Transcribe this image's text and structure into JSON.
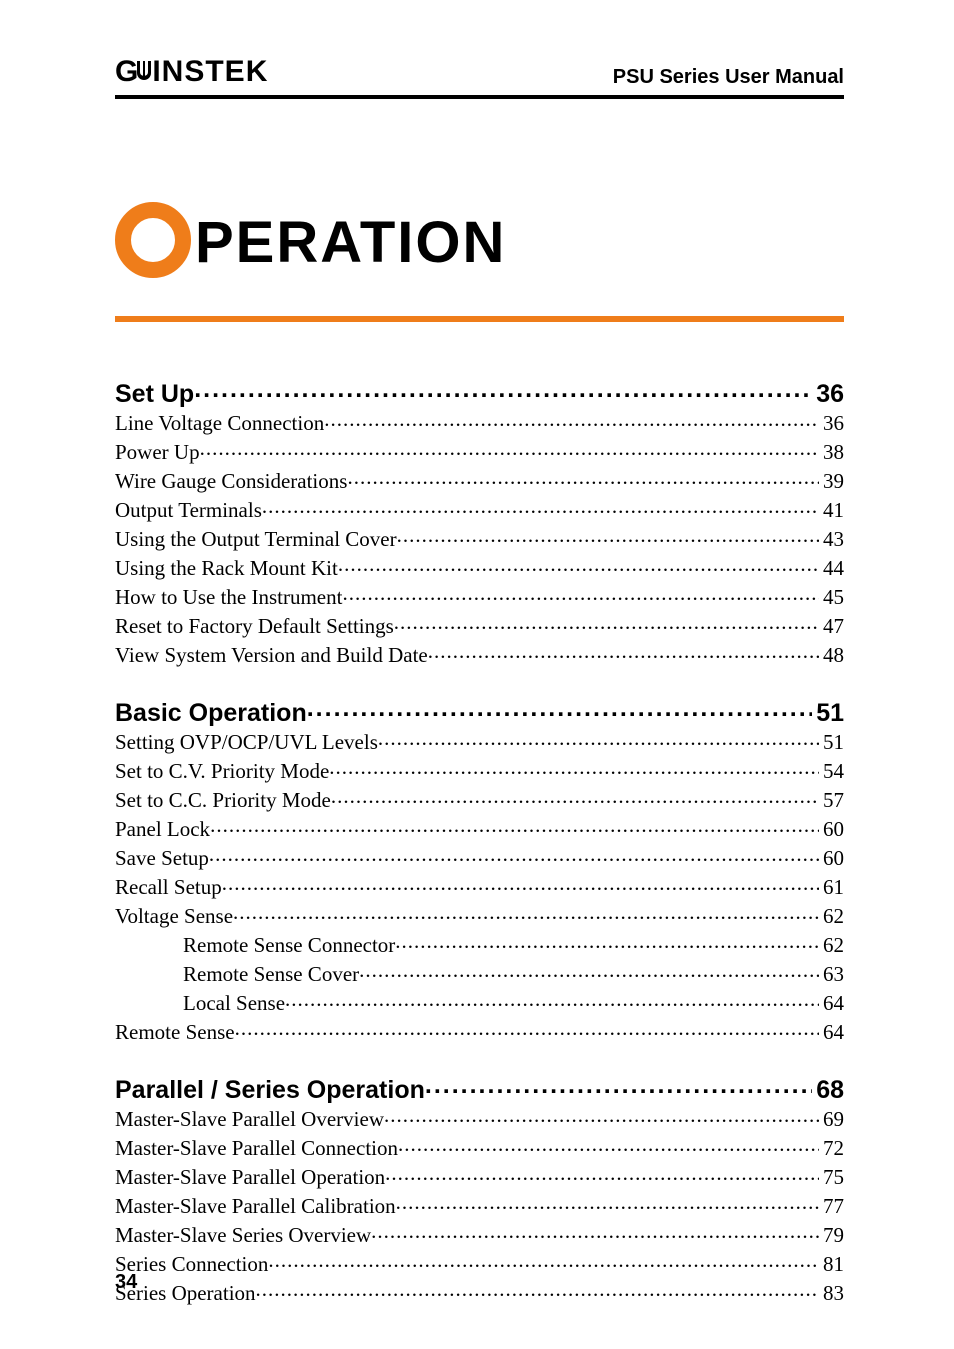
{
  "header": {
    "logo_left": "G",
    "logo_right": "INSTEK",
    "manual_title": "PSU Series User Manual"
  },
  "chapter": {
    "initial": "O",
    "rest": "PERATION",
    "accent_color": "#ef7d1a",
    "title_fontsize": 58
  },
  "toc": [
    {
      "title": "Set Up",
      "page": "36",
      "items": [
        {
          "label": "Line Voltage Connection",
          "page": "36",
          "level": 1
        },
        {
          "label": "Power Up",
          "page": "38",
          "level": 1
        },
        {
          "label": "Wire Gauge Considerations",
          "page": "39",
          "level": 1
        },
        {
          "label": "Output Terminals",
          "page": "41",
          "level": 1
        },
        {
          "label": "Using the Output Terminal Cover",
          "page": "43",
          "level": 1
        },
        {
          "label": "Using the Rack Mount Kit",
          "page": "44",
          "level": 1
        },
        {
          "label": "How to Use the Instrument",
          "page": "45",
          "level": 1
        },
        {
          "label": "Reset to Factory Default Settings",
          "page": "47",
          "level": 1
        },
        {
          "label": "View System Version and Build Date",
          "page": "48",
          "level": 1
        }
      ]
    },
    {
      "title": "Basic Operation",
      "page": "51",
      "items": [
        {
          "label": "Setting OVP/OCP/UVL Levels",
          "page": "51",
          "level": 1
        },
        {
          "label": "Set to C.V. Priority Mode",
          "page": "54",
          "level": 1
        },
        {
          "label": "Set to C.C. Priority Mode",
          "page": "57",
          "level": 1
        },
        {
          "label": "Panel Lock",
          "page": "60",
          "level": 1
        },
        {
          "label": "Save Setup",
          "page": "60",
          "level": 1
        },
        {
          "label": "Recall Setup",
          "page": "61",
          "level": 1
        },
        {
          "label": "Voltage Sense",
          "page": "62",
          "level": 1
        },
        {
          "label": "Remote Sense Connector",
          "page": "62",
          "level": 2
        },
        {
          "label": "Remote Sense Cover",
          "page": "63",
          "level": 2
        },
        {
          "label": "Local Sense",
          "page": "64",
          "level": 2
        },
        {
          "label": "Remote Sense",
          "page": "64",
          "level": 1
        }
      ]
    },
    {
      "title": "Parallel / Series Operation",
      "page": "68",
      "items": [
        {
          "label": "Master-Slave Parallel Overview",
          "page": "69",
          "level": 1
        },
        {
          "label": "Master-Slave Parallel Connection",
          "page": "72",
          "level": 1
        },
        {
          "label": "Master-Slave Parallel Operation",
          "page": "75",
          "level": 1
        },
        {
          "label": "Master-Slave Parallel Calibration",
          "page": "77",
          "level": 1
        },
        {
          "label": "Master-Slave Series Overview",
          "page": "79",
          "level": 1
        },
        {
          "label": "Series Connection",
          "page": "81",
          "level": 1
        },
        {
          "label": "Series Operation",
          "page": "83",
          "level": 1
        }
      ]
    }
  ],
  "pagefoot": {
    "number": "34"
  },
  "style": {
    "body_font": "Georgia",
    "heading_font": "Segoe UI",
    "section_fontsize": 25,
    "entry_fontsize": 21,
    "text_color": "#000000",
    "rule_color": "#000000",
    "accent_color": "#ef7d1a"
  }
}
